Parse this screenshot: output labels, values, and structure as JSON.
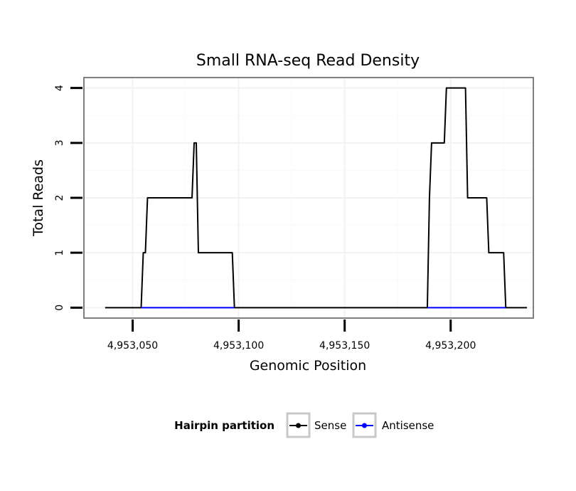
{
  "chart_data": {
    "type": "line",
    "title": "Small RNA-seq Read Density",
    "xlabel": "Genomic Position",
    "ylabel": "Total Reads",
    "xlim": [
      4953027,
      4953239
    ],
    "ylim": [
      -0.19,
      4.19
    ],
    "x_ticks": [
      4953050,
      4953100,
      4953150,
      4953200
    ],
    "x_tick_labels": [
      "4,953,050",
      "4,953,100",
      "4,953,150",
      "4,953,200"
    ],
    "y_ticks": [
      0,
      1,
      2,
      3,
      4
    ],
    "y_tick_labels": [
      "0",
      "1",
      "2",
      "3",
      "4"
    ],
    "grid": true,
    "legend": {
      "title": "Hairpin partition",
      "position": "bottom"
    },
    "series": [
      {
        "name": "Sense",
        "color": "#000000",
        "x": [
          4953037,
          4953054,
          4953055,
          4953056,
          4953057,
          4953058,
          4953078,
          4953079,
          4953080,
          4953081,
          4953082,
          4953097,
          4953098,
          4953189,
          4953190,
          4953191,
          4953197,
          4953198,
          4953207,
          4953208,
          4953217,
          4953218,
          4953225,
          4953226,
          4953236
        ],
        "values": [
          0,
          0,
          1,
          1,
          2,
          2,
          2,
          3,
          3,
          1,
          1,
          1,
          0,
          0,
          2,
          3,
          3,
          4,
          4,
          2,
          2,
          1,
          1,
          0,
          0
        ]
      },
      {
        "name": "Antisense",
        "color": "#0000ff",
        "x": [
          4953054,
          4953098,
          4953189,
          4953226
        ],
        "values": [
          0,
          0,
          0,
          0
        ],
        "segments": [
          [
            0,
            1
          ],
          [
            2,
            3
          ]
        ]
      }
    ]
  }
}
